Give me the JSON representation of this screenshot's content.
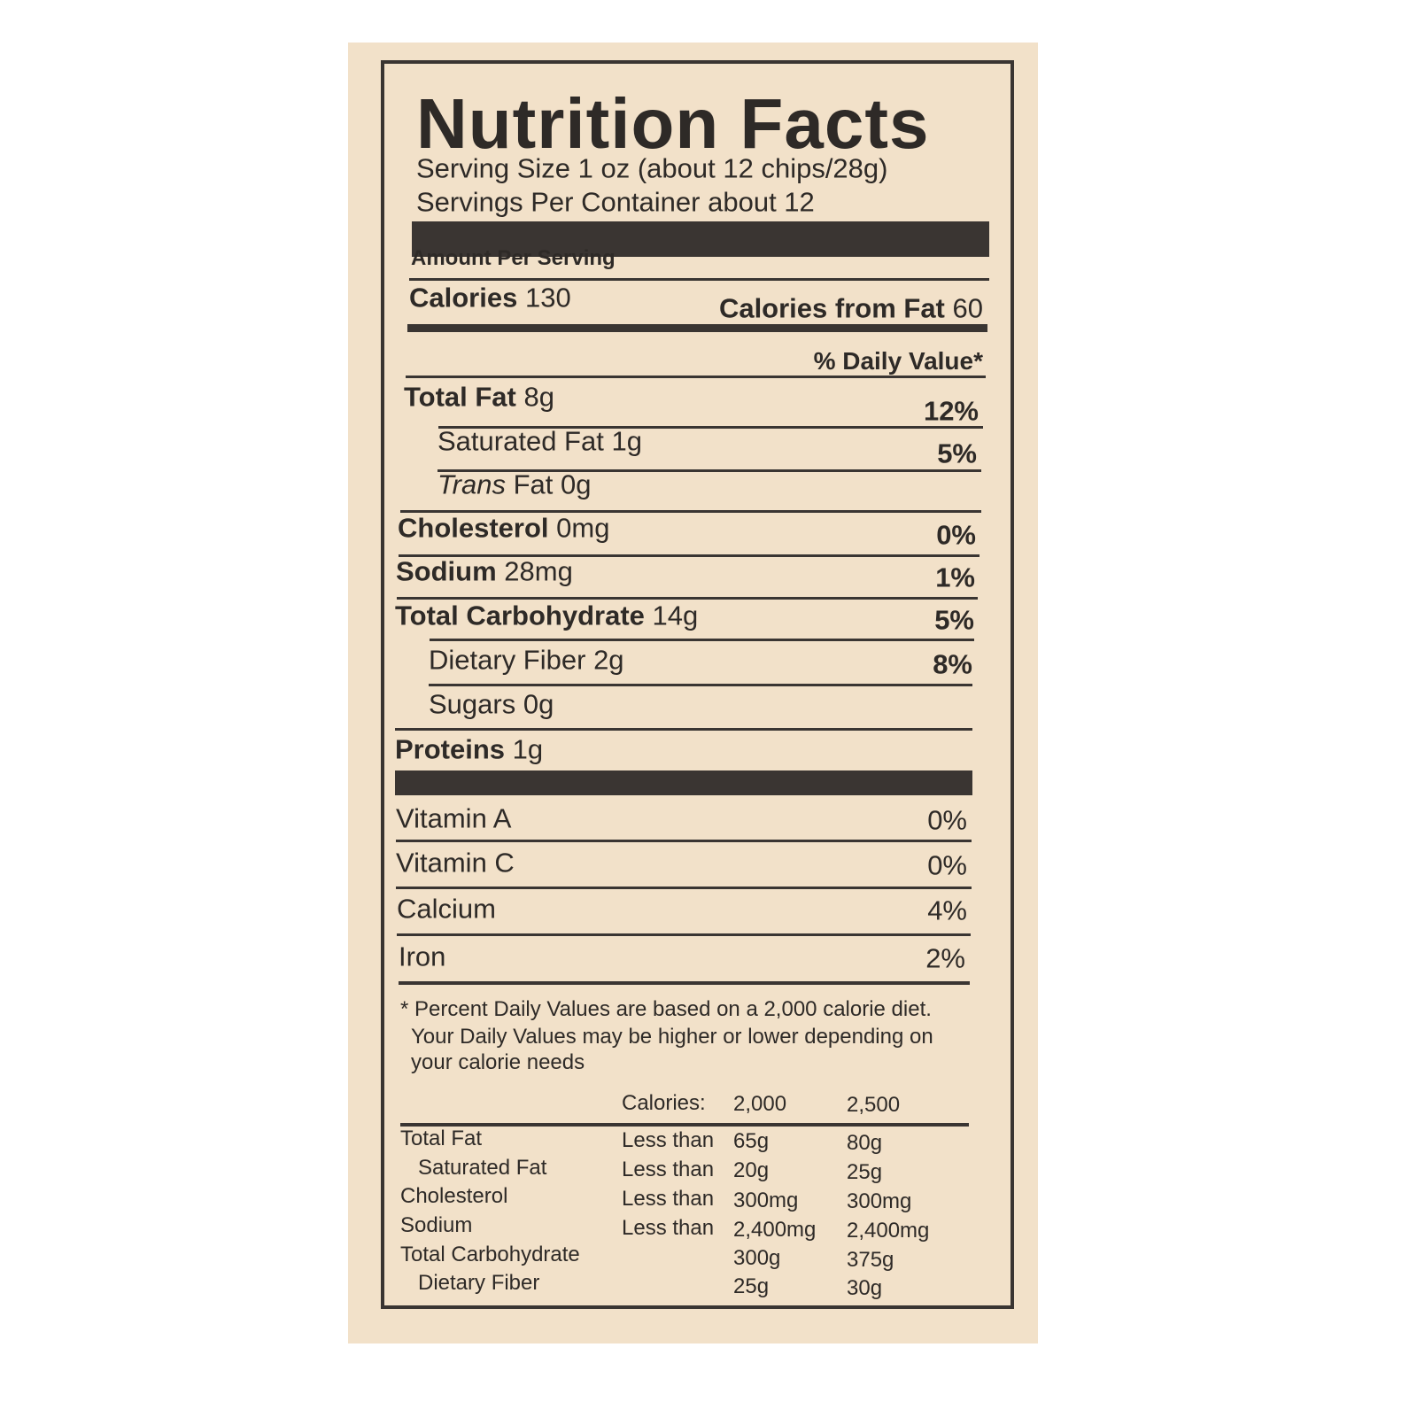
{
  "label": {
    "title": "Nutrition Facts",
    "serving_size": "Serving Size 1 oz (about 12 chips/28g)",
    "servings_per_container": "Servings Per Container about 12",
    "amount_per_serving": "Amount Per Serving",
    "calories": {
      "label": "Calories",
      "value": "130"
    },
    "calories_from_fat": {
      "label": "Calories from Fat",
      "value": "60"
    },
    "daily_value_header": "% Daily Value*",
    "nutrients": [
      {
        "name": "Total Fat",
        "amount": "8g",
        "dv": "12%"
      },
      {
        "name": "Saturated Fat",
        "amount": "1g",
        "dv": "5%"
      },
      {
        "name": "Trans",
        "amount": "Fat 0g"
      },
      {
        "name": "Cholesterol",
        "amount": "0mg",
        "dv": "0%"
      },
      {
        "name": "Sodium",
        "amount": "28mg",
        "dv": "1%"
      },
      {
        "name": "Total Carbohydrate",
        "amount": "14g",
        "dv": "5%"
      },
      {
        "name": "Dietary Fiber",
        "amount": "2g",
        "dv": "8%"
      },
      {
        "name": "Sugars",
        "amount": "0g"
      },
      {
        "name": "Proteins",
        "amount": "1g"
      }
    ],
    "vitamins": [
      {
        "name": "Vitamin A",
        "dv": "0%"
      },
      {
        "name": "Vitamin C",
        "dv": "0%"
      },
      {
        "name": "Calcium",
        "dv": "4%"
      },
      {
        "name": "Iron",
        "dv": "2%"
      }
    ],
    "footnote": [
      "* Percent Daily Values are based on a 2,000 calorie diet.",
      "Your Daily Values may be higher or lower depending on",
      "your calorie needs"
    ],
    "daily_values_table": {
      "header": [
        "Calories:",
        "2,000",
        "2,500"
      ],
      "rows": [
        [
          "Total Fat",
          "Less than",
          "65g",
          "80g"
        ],
        [
          "Saturated Fat",
          "Less than",
          "20g",
          "25g"
        ],
        [
          "Cholesterol",
          "Less than",
          "300mg",
          "300mg"
        ],
        [
          "Sodium",
          "Less than",
          "2,400mg",
          "2,400mg"
        ],
        [
          "Total Carbohydrate",
          "300g",
          "375g"
        ],
        [
          "Dietary Fiber",
          "25g",
          "30g"
        ]
      ]
    }
  }
}
